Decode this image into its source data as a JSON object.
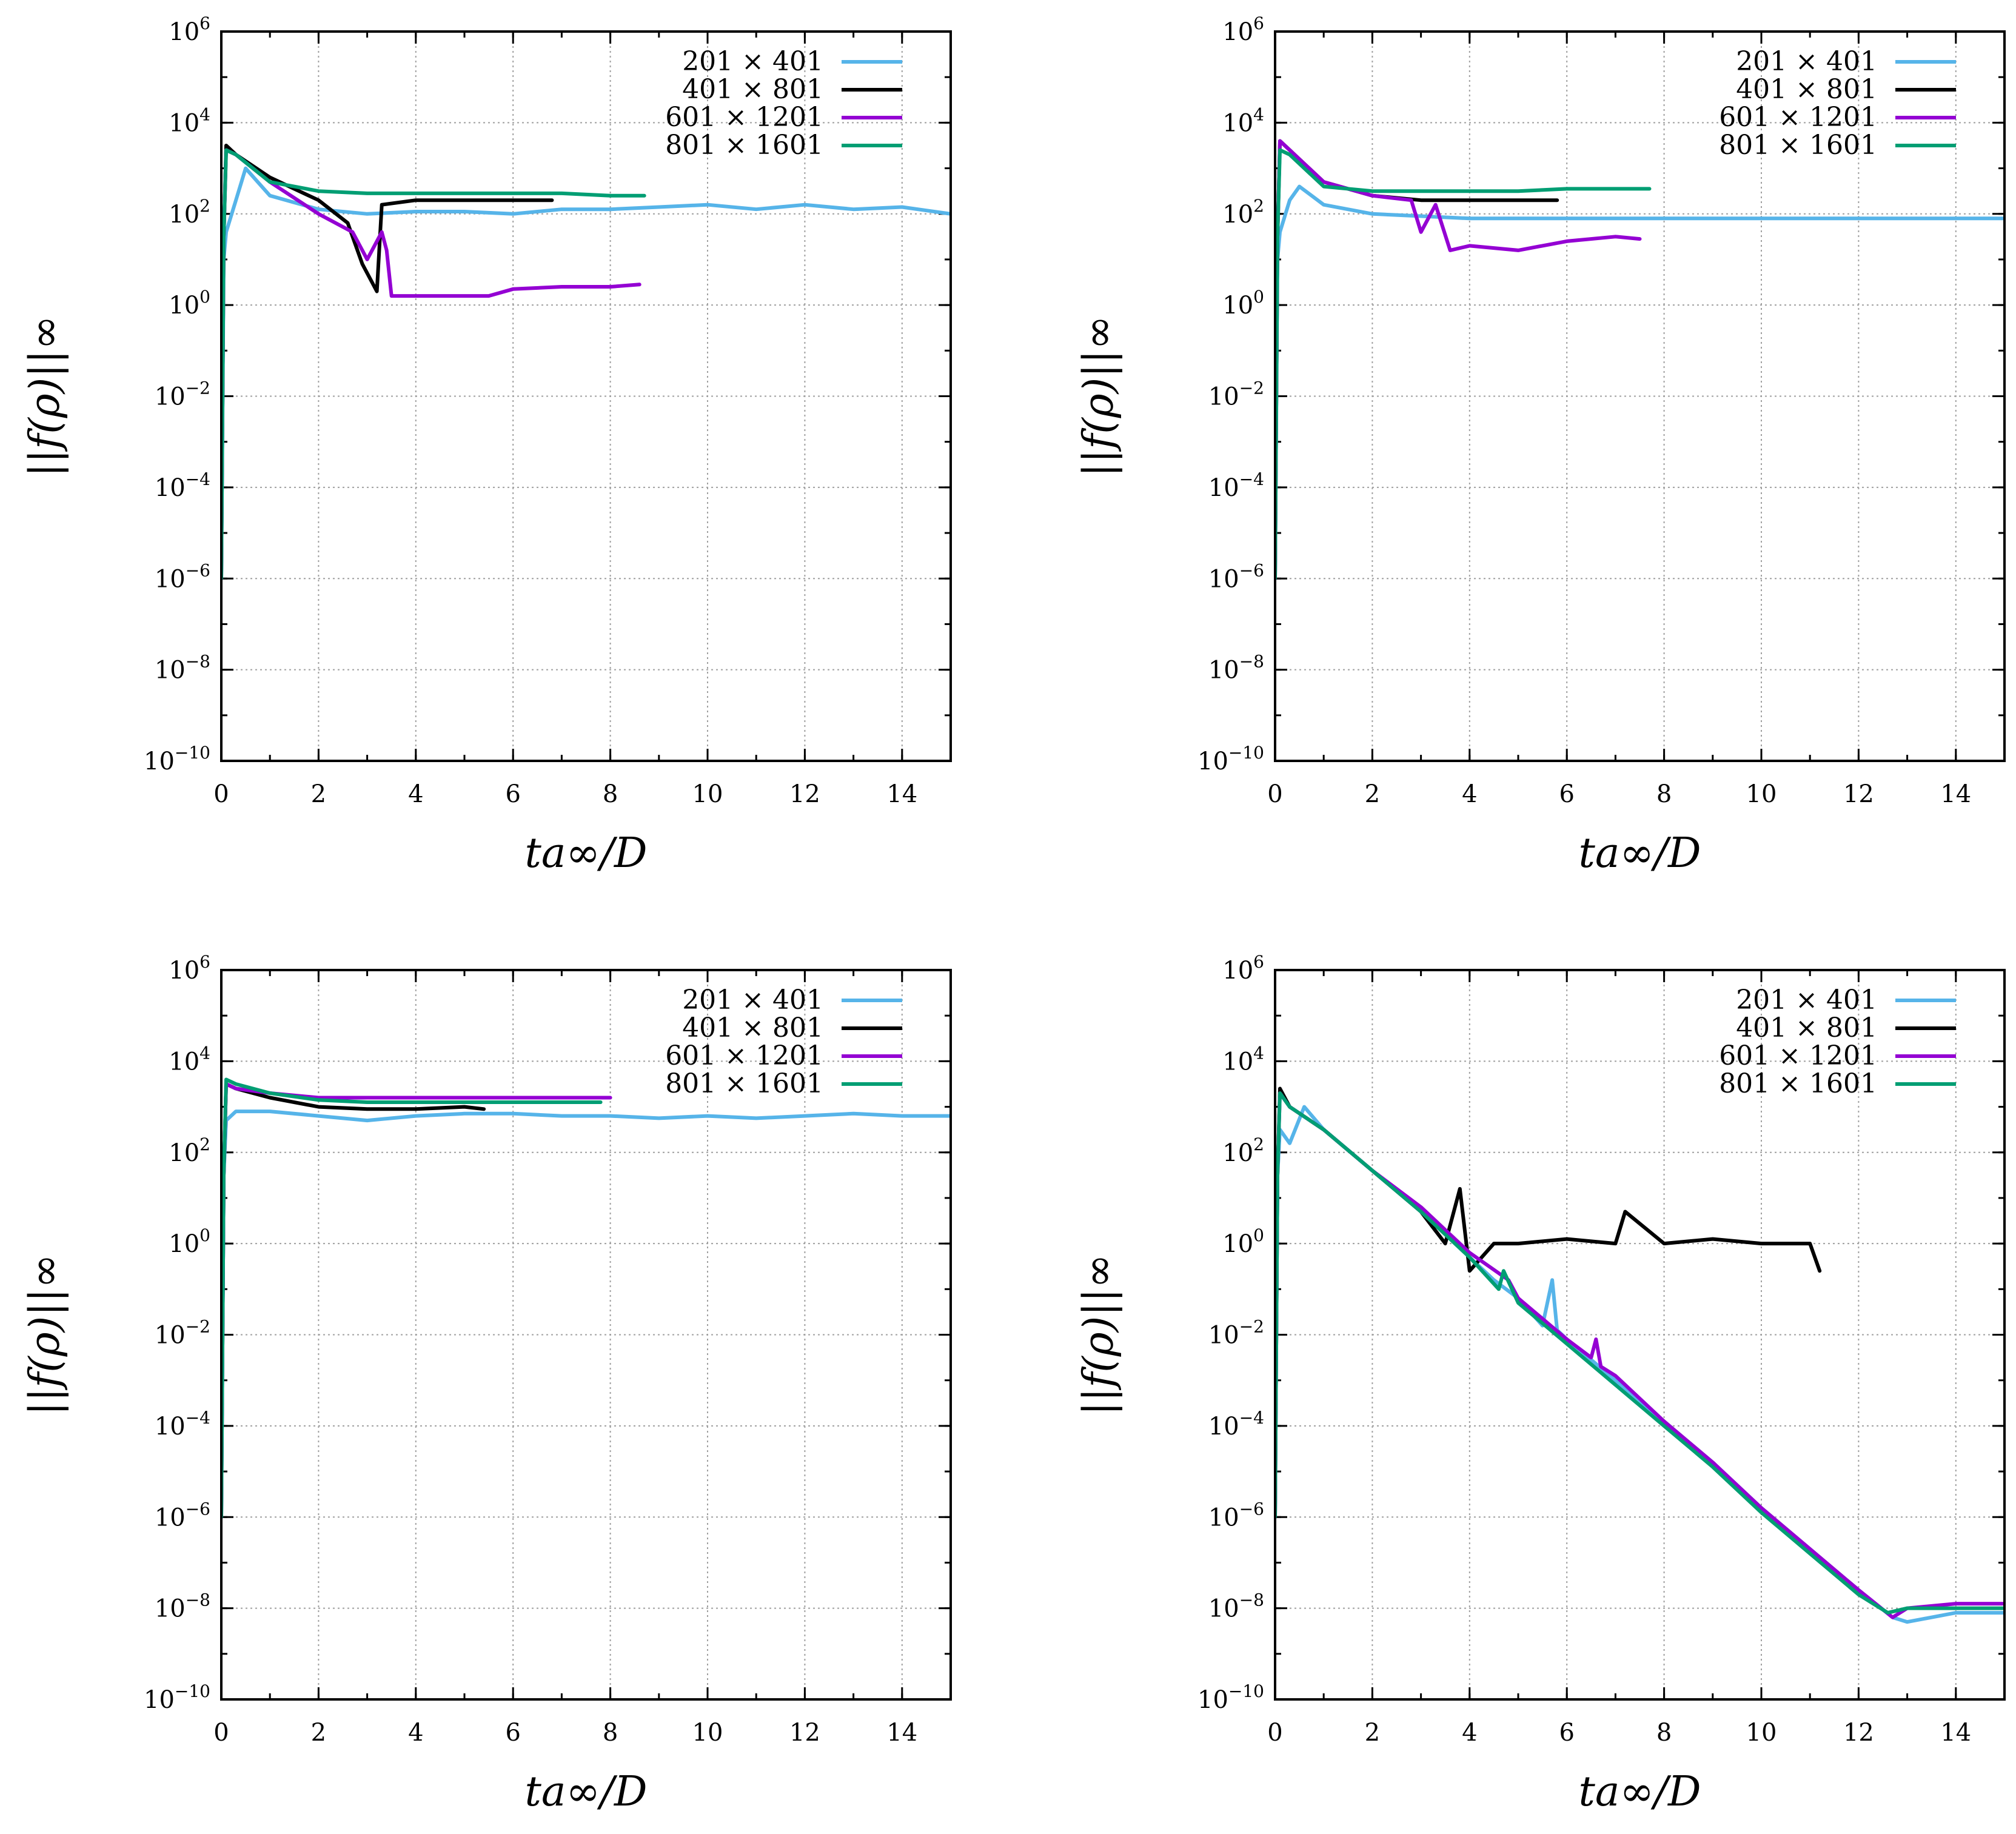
{
  "colors": {
    "c201": "#56b4e9",
    "c401": "#000000",
    "c601": "#9400d3",
    "c801": "#009e73",
    "grid": "#a0a0a0"
  },
  "chart_data": [
    {
      "type": "line",
      "panel": "top-left",
      "xlabel": "ta∞/D",
      "ylabel": "||f(ρ)||∞",
      "xlim": [
        0,
        15
      ],
      "ylim_log10": [
        -10,
        6
      ],
      "yscale": "log",
      "grid": true,
      "legend": "top-right",
      "x_ticks": [
        "0",
        "2",
        "4",
        "6",
        "8",
        "10",
        "12",
        "14"
      ],
      "y_ticks": [
        "10^6",
        "10^4",
        "10^2",
        "10^0",
        "10^-2",
        "10^-4",
        "10^-6",
        "10^-8",
        "10^-10"
      ],
      "series": [
        {
          "name": "201 × 401",
          "color_key": "c201",
          "x": [
            0,
            0.05,
            0.1,
            0.3,
            0.5,
            1,
            2,
            3,
            4,
            5,
            6,
            7,
            8,
            9,
            10,
            11,
            12,
            13,
            14,
            15
          ],
          "log10_y": [
            -6,
            1,
            1.6,
            2.3,
            3.0,
            2.4,
            2.1,
            2.0,
            2.05,
            2.05,
            2.0,
            2.1,
            2.1,
            2.15,
            2.2,
            2.1,
            2.2,
            2.1,
            2.15,
            2.0
          ]
        },
        {
          "name": "401 × 801",
          "color_key": "c401",
          "x": [
            0,
            0.05,
            0.1,
            0.3,
            1,
            2,
            2.6,
            2.9,
            3.2,
            3.3,
            4,
            5,
            6,
            6.8
          ],
          "log10_y": [
            -6,
            1.5,
            3.5,
            3.3,
            2.8,
            2.3,
            1.8,
            0.9,
            0.3,
            2.2,
            2.3,
            2.3,
            2.3,
            2.3
          ]
        },
        {
          "name": "601 × 1201",
          "color_key": "c601",
          "x": [
            0,
            0.05,
            0.1,
            0.3,
            1,
            2,
            2.7,
            3.0,
            3.3,
            3.4,
            3.5,
            5.5,
            6,
            7,
            8,
            8.6
          ],
          "log10_y": [
            -6,
            1.5,
            3.4,
            3.3,
            2.7,
            2.0,
            1.6,
            1.0,
            1.6,
            1.2,
            0.2,
            0.2,
            0.35,
            0.4,
            0.4,
            0.45
          ]
        },
        {
          "name": "801 × 1601",
          "color_key": "c801",
          "x": [
            0,
            0.05,
            0.1,
            0.3,
            1,
            2,
            3,
            4,
            5,
            6,
            7,
            8,
            8.7
          ],
          "log10_y": [
            -6,
            1.5,
            3.4,
            3.3,
            2.7,
            2.5,
            2.45,
            2.45,
            2.45,
            2.45,
            2.45,
            2.4,
            2.4
          ]
        }
      ]
    },
    {
      "type": "line",
      "panel": "top-right",
      "xlabel": "ta∞/D",
      "ylabel": "||f(ρ)||∞",
      "xlim": [
        0,
        15
      ],
      "ylim_log10": [
        -10,
        6
      ],
      "yscale": "log",
      "grid": true,
      "legend": "top-right",
      "x_ticks": [
        "0",
        "2",
        "4",
        "6",
        "8",
        "10",
        "12",
        "14"
      ],
      "y_ticks": [
        "10^6",
        "10^4",
        "10^2",
        "10^0",
        "10^-2",
        "10^-4",
        "10^-6",
        "10^-8",
        "10^-10"
      ],
      "series": [
        {
          "name": "201 × 401",
          "color_key": "c201",
          "x": [
            0,
            0.05,
            0.1,
            0.3,
            0.5,
            1,
            2,
            3,
            4,
            6,
            8,
            10,
            12,
            14,
            15
          ],
          "log10_y": [
            -6,
            1,
            1.6,
            2.3,
            2.6,
            2.2,
            2.0,
            1.95,
            1.9,
            1.9,
            1.9,
            1.9,
            1.9,
            1.9,
            1.9
          ]
        },
        {
          "name": "401 × 801",
          "color_key": "c401",
          "x": [
            0,
            0.05,
            0.1,
            0.3,
            1,
            2,
            3,
            4,
            5,
            5.8
          ],
          "log10_y": [
            -6,
            1.5,
            3.6,
            3.4,
            2.7,
            2.4,
            2.3,
            2.3,
            2.3,
            2.3
          ]
        },
        {
          "name": "601 × 1201",
          "color_key": "c601",
          "x": [
            0,
            0.05,
            0.1,
            0.3,
            1,
            2,
            2.8,
            3.0,
            3.3,
            3.6,
            4,
            5,
            6,
            7,
            7.5
          ],
          "log10_y": [
            -6,
            1.5,
            3.6,
            3.4,
            2.7,
            2.4,
            2.3,
            1.6,
            2.2,
            1.2,
            1.3,
            1.2,
            1.4,
            1.5,
            1.45
          ]
        },
        {
          "name": "801 × 1601",
          "color_key": "c801",
          "x": [
            0,
            0.05,
            0.1,
            0.3,
            1,
            2,
            3,
            4,
            5,
            6,
            7,
            7.7
          ],
          "log10_y": [
            -6,
            1.5,
            3.4,
            3.3,
            2.6,
            2.5,
            2.5,
            2.5,
            2.5,
            2.55,
            2.55,
            2.55
          ]
        }
      ]
    },
    {
      "type": "line",
      "panel": "bottom-left",
      "xlabel": "ta∞/D",
      "ylabel": "||f(ρ)||∞",
      "xlim": [
        0,
        15
      ],
      "ylim_log10": [
        -10,
        6
      ],
      "yscale": "log",
      "grid": true,
      "legend": "top-right",
      "x_ticks": [
        "0",
        "2",
        "4",
        "6",
        "8",
        "10",
        "12",
        "14"
      ],
      "y_ticks": [
        "10^6",
        "10^4",
        "10^2",
        "10^0",
        "10^-2",
        "10^-4",
        "10^-6",
        "10^-8",
        "10^-10"
      ],
      "series": [
        {
          "name": "201 × 401",
          "color_key": "c201",
          "x": [
            0,
            0.05,
            0.1,
            0.3,
            1,
            2,
            3,
            4,
            5,
            6,
            7,
            8,
            9,
            10,
            11,
            12,
            13,
            14,
            15
          ],
          "log10_y": [
            -6,
            1.5,
            2.7,
            2.9,
            2.9,
            2.8,
            2.7,
            2.8,
            2.85,
            2.85,
            2.8,
            2.8,
            2.75,
            2.8,
            2.75,
            2.8,
            2.85,
            2.8,
            2.8
          ]
        },
        {
          "name": "401 × 801",
          "color_key": "c401",
          "x": [
            0,
            0.05,
            0.1,
            0.3,
            1,
            2,
            3,
            4,
            5,
            5.4
          ],
          "log10_y": [
            -6,
            1.5,
            3.5,
            3.4,
            3.2,
            3.0,
            2.95,
            2.95,
            3.0,
            2.95
          ]
        },
        {
          "name": "601 × 1201",
          "color_key": "c601",
          "x": [
            0,
            0.05,
            0.1,
            0.3,
            1,
            2,
            3,
            4,
            5,
            6,
            7,
            8
          ],
          "log10_y": [
            -6,
            1.5,
            3.5,
            3.4,
            3.3,
            3.2,
            3.2,
            3.2,
            3.2,
            3.2,
            3.2,
            3.2
          ]
        },
        {
          "name": "801 × 1601",
          "color_key": "c801",
          "x": [
            0,
            0.05,
            0.1,
            0.3,
            1,
            2,
            3,
            4,
            5,
            6,
            7,
            7.8
          ],
          "log10_y": [
            -6,
            1.5,
            3.6,
            3.5,
            3.3,
            3.15,
            3.1,
            3.1,
            3.1,
            3.1,
            3.1,
            3.1
          ]
        }
      ]
    },
    {
      "type": "line",
      "panel": "bottom-right",
      "xlabel": "ta∞/D",
      "ylabel": "||f(ρ)||∞",
      "xlim": [
        0,
        15
      ],
      "ylim_log10": [
        -10,
        6
      ],
      "yscale": "log",
      "grid": true,
      "legend": "top-right",
      "x_ticks": [
        "0",
        "2",
        "4",
        "6",
        "8",
        "10",
        "12",
        "14"
      ],
      "y_ticks": [
        "10^6",
        "10^4",
        "10^2",
        "10^0",
        "10^-2",
        "10^-4",
        "10^-6",
        "10^-8",
        "10^-10"
      ],
      "series": [
        {
          "name": "201 × 401",
          "color_key": "c201",
          "x": [
            0,
            0.05,
            0.1,
            0.3,
            0.6,
            1,
            2,
            3,
            4,
            4.5,
            5,
            5.5,
            5.7,
            5.8,
            6,
            7,
            8,
            9,
            10,
            11,
            12,
            12.7,
            13,
            14,
            15
          ],
          "log10_y": [
            -6,
            1.5,
            2.5,
            2.2,
            3.0,
            2.5,
            1.6,
            0.7,
            -0.3,
            -0.8,
            -1.2,
            -1.8,
            -0.8,
            -1.9,
            -2.1,
            -3.0,
            -3.9,
            -4.8,
            -5.8,
            -6.7,
            -7.6,
            -8.2,
            -8.3,
            -8.1,
            -8.1
          ]
        },
        {
          "name": "401 × 801",
          "color_key": "c401",
          "x": [
            0,
            0.05,
            0.1,
            0.3,
            1,
            2,
            3,
            3.5,
            3.8,
            4.0,
            4.5,
            5,
            6,
            7,
            7.2,
            8,
            9,
            10,
            11,
            11.2
          ],
          "log10_y": [
            -6,
            1.5,
            3.4,
            3.0,
            2.5,
            1.6,
            0.7,
            0.0,
            1.2,
            -0.6,
            0.0,
            0.0,
            0.1,
            0.0,
            0.7,
            0.0,
            0.1,
            0.0,
            0.0,
            -0.6
          ]
        },
        {
          "name": "601 × 1201",
          "color_key": "c601",
          "x": [
            0,
            0.05,
            0.1,
            0.3,
            1,
            2,
            3,
            4,
            4.8,
            5,
            6,
            6.5,
            6.6,
            6.7,
            7,
            8,
            9,
            10,
            11,
            12,
            12.7,
            13,
            14,
            15
          ],
          "log10_y": [
            -6,
            1.5,
            3.3,
            3.0,
            2.5,
            1.6,
            0.8,
            -0.2,
            -0.8,
            -1.2,
            -2.1,
            -2.5,
            -2.1,
            -2.7,
            -2.9,
            -3.9,
            -4.8,
            -5.8,
            -6.7,
            -7.6,
            -8.2,
            -8.0,
            -7.9,
            -7.9
          ]
        },
        {
          "name": "801 × 1601",
          "color_key": "c801",
          "x": [
            0,
            0.05,
            0.1,
            0.3,
            1,
            2,
            3,
            4,
            4.6,
            4.7,
            5,
            6,
            7,
            8,
            9,
            10,
            11,
            12,
            12.6,
            13,
            14,
            15
          ],
          "log10_y": [
            -6,
            1.5,
            3.3,
            3.0,
            2.5,
            1.6,
            0.7,
            -0.3,
            -1.0,
            -0.6,
            -1.3,
            -2.2,
            -3.1,
            -4.0,
            -4.9,
            -5.9,
            -6.8,
            -7.7,
            -8.1,
            -8.0,
            -8.0,
            -8.0
          ]
        }
      ]
    }
  ]
}
